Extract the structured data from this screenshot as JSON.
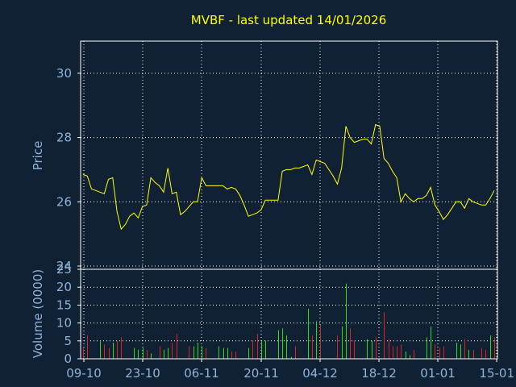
{
  "colors": {
    "background": "#0f2133",
    "frame": "#ffffff",
    "grid": "#ffffff",
    "price_line": "#ffff00",
    "volume_up": "#22dd22",
    "volume_down": "#dd2222",
    "axis_text": "#8fb3d9",
    "title": "#ffff00"
  },
  "chart_data": [
    {
      "type": "line",
      "title": "MVBF - last updated 14/01/2026",
      "ylabel": "Price",
      "xlabel": "",
      "ylim": [
        23.9,
        31.0
      ],
      "yticks": [
        24,
        26,
        28,
        30
      ],
      "grid": true,
      "series": [
        {
          "values": [
            26.85,
            26.8,
            26.4,
            26.35,
            26.3,
            26.25,
            26.7,
            26.75,
            25.7,
            25.15,
            25.3,
            25.55,
            25.65,
            25.5,
            25.85,
            25.9,
            26.75,
            26.6,
            26.5,
            26.3,
            27.05,
            26.25,
            26.3,
            25.6,
            25.7,
            25.85,
            26.0,
            26.0,
            26.75,
            26.5,
            26.5,
            26.5,
            26.5,
            26.5,
            26.4,
            26.45,
            26.4,
            26.2,
            25.9,
            25.55,
            25.6,
            25.65,
            25.75,
            26.05,
            26.05,
            26.05,
            26.05,
            26.95,
            27.0,
            27.0,
            27.05,
            27.05,
            27.1,
            27.15,
            26.85,
            27.3,
            27.25,
            27.2,
            27.0,
            26.8,
            26.55,
            27.05,
            28.35,
            28.0,
            27.85,
            27.9,
            27.95,
            27.95,
            27.8,
            28.4,
            28.35,
            27.35,
            27.2,
            26.95,
            26.75,
            26.0,
            26.25,
            26.1,
            26.0,
            26.1,
            26.1,
            26.2,
            26.45,
            25.9,
            25.7,
            25.45,
            25.6,
            25.8,
            26.0,
            26.0,
            25.8,
            26.1,
            26.0,
            25.95,
            25.9,
            25.9,
            26.1,
            26.35
          ]
        }
      ]
    },
    {
      "type": "bar",
      "ylabel": "Volume (0000)",
      "xlabel": "",
      "ylim": [
        0,
        25
      ],
      "yticks": [
        0,
        5,
        10,
        15,
        20,
        25
      ],
      "x_tick_labels": [
        "09-10",
        "23-10",
        "06-11",
        "20-11",
        "04-12",
        "18-12",
        "01-01",
        "15-01"
      ],
      "grid": true,
      "series": [
        {
          "values": [
            3.0,
            6.5,
            0.0,
            0.0,
            5.0,
            4.0,
            3.0,
            4.5,
            5.0,
            6.0,
            0.0,
            0.0,
            3.0,
            2.5,
            3.0,
            2.5,
            1.5,
            0.0,
            3.5,
            2.5,
            3.0,
            4.5,
            7.0,
            0.0,
            0.0,
            3.5,
            3.5,
            4.5,
            3.5,
            3.0,
            0.0,
            0.0,
            3.5,
            3.0,
            3.0,
            2.0,
            2.0,
            0.0,
            0.0,
            3.0,
            5.0,
            7.0,
            5.0,
            5.0,
            0.0,
            0.0,
            8.0,
            8.5,
            6.5,
            0.5,
            3.5,
            0.0,
            0.0,
            14.0,
            6.5,
            10.5,
            9.5,
            0.0,
            0.0,
            0.0,
            6.5,
            9.0,
            21.0,
            8.5,
            5.0,
            0.0,
            0.0,
            5.5,
            5.0,
            6.0,
            0.0,
            13.0,
            5.5,
            3.5,
            3.5,
            4.0,
            2.0,
            1.0,
            2.5,
            0.0,
            0.0,
            6.0,
            9.0,
            4.0,
            3.0,
            3.5,
            0.0,
            0.0,
            4.5,
            4.0,
            5.5,
            2.5,
            2.5,
            0.0,
            3.0,
            2.5,
            6.5,
            6.0
          ],
          "directions": [
            "d",
            "d",
            "d",
            "d",
            "u",
            "d",
            "d",
            "u",
            "d",
            "d",
            "d",
            "d",
            "u",
            "u",
            "u",
            "d",
            "u",
            "d",
            "d",
            "u",
            "u",
            "d",
            "d",
            "d",
            "d",
            "d",
            "u",
            "u",
            "u",
            "d",
            "d",
            "d",
            "u",
            "u",
            "u",
            "d",
            "d",
            "d",
            "d",
            "u",
            "d",
            "d",
            "u",
            "u",
            "u",
            "d",
            "u",
            "u",
            "u",
            "u",
            "d",
            "d",
            "d",
            "u",
            "d",
            "u",
            "d",
            "d",
            "d",
            "d",
            "d",
            "u",
            "u",
            "d",
            "d",
            "d",
            "d",
            "u",
            "u",
            "d",
            "d",
            "d",
            "d",
            "d",
            "d",
            "d",
            "u",
            "u",
            "d",
            "d",
            "d",
            "u",
            "u",
            "d",
            "d",
            "d",
            "d",
            "d",
            "u",
            "u",
            "d",
            "u",
            "d",
            "d",
            "d",
            "d",
            "u",
            "d"
          ]
        }
      ]
    }
  ]
}
